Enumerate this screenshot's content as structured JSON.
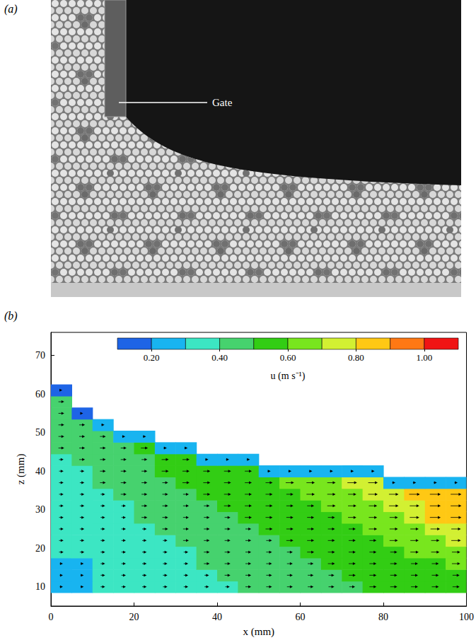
{
  "panel_a": {
    "label": "(a)",
    "annotations": [
      "Gate"
    ]
  },
  "chart_data": {
    "type": "contour",
    "panel_label": "(b)",
    "x_label": "x (mm)",
    "y_label": "z (mm)",
    "xlim": [
      0,
      100
    ],
    "xticks": [
      0,
      20,
      40,
      60,
      80,
      100
    ],
    "ylim": [
      5,
      76
    ],
    "yticks": [
      10,
      20,
      30,
      40,
      50,
      60,
      70
    ],
    "grid": false,
    "marker": "arrow",
    "x": [
      2.5,
      7.5,
      12.5,
      17.5,
      22.5,
      27.5,
      32.5,
      37.5,
      42.5,
      47.5,
      52.5,
      57.5,
      62.5,
      67.5,
      72.5,
      77.5,
      82.5,
      87.5,
      92.5,
      97.5
    ],
    "z": [
      10,
      13,
      16,
      19,
      22,
      25,
      28,
      31,
      34,
      37,
      40,
      43,
      46,
      49,
      52,
      55,
      58,
      61
    ],
    "u": [
      [
        0.25,
        0.25,
        0.35,
        0.35,
        0.35,
        0.35,
        0.35,
        0.35,
        0.35,
        0.45,
        0.45,
        0.45,
        0.45,
        0.45,
        0.45,
        0.55,
        0.55,
        0.55,
        0.55,
        0.55
      ],
      [
        0.25,
        0.25,
        0.35,
        0.35,
        0.35,
        0.35,
        0.35,
        0.35,
        0.45,
        0.45,
        0.45,
        0.45,
        0.45,
        0.45,
        0.55,
        0.55,
        0.55,
        0.55,
        0.55,
        0.55
      ],
      [
        0.25,
        0.25,
        0.35,
        0.35,
        0.35,
        0.35,
        0.35,
        0.45,
        0.45,
        0.45,
        0.45,
        0.45,
        0.45,
        0.55,
        0.55,
        0.55,
        0.55,
        0.55,
        0.55,
        0.65
      ],
      [
        0.35,
        0.35,
        0.35,
        0.35,
        0.35,
        0.35,
        0.35,
        0.45,
        0.45,
        0.45,
        0.45,
        0.45,
        0.55,
        0.55,
        0.55,
        0.55,
        0.55,
        0.65,
        0.65,
        0.65
      ],
      [
        0.35,
        0.35,
        0.35,
        0.35,
        0.35,
        0.35,
        0.45,
        0.45,
        0.45,
        0.45,
        0.45,
        0.55,
        0.55,
        0.55,
        0.55,
        0.55,
        0.65,
        0.65,
        0.65,
        0.75
      ],
      [
        0.35,
        0.35,
        0.35,
        0.35,
        0.35,
        0.45,
        0.45,
        0.45,
        0.45,
        0.45,
        0.55,
        0.55,
        0.55,
        0.55,
        0.55,
        0.65,
        0.65,
        0.65,
        0.75,
        0.75
      ],
      [
        0.35,
        0.35,
        0.35,
        0.35,
        0.45,
        0.45,
        0.45,
        0.45,
        0.45,
        0.55,
        0.55,
        0.55,
        0.55,
        0.55,
        0.65,
        0.65,
        0.65,
        0.75,
        0.85,
        0.85
      ],
      [
        0.35,
        0.35,
        0.35,
        0.35,
        0.45,
        0.45,
        0.45,
        0.45,
        0.55,
        0.55,
        0.55,
        0.55,
        0.55,
        0.65,
        0.65,
        0.65,
        0.75,
        0.75,
        0.85,
        0.85
      ],
      [
        0.35,
        0.35,
        0.35,
        0.45,
        0.45,
        0.45,
        0.45,
        0.55,
        0.55,
        0.55,
        0.55,
        0.55,
        0.65,
        0.65,
        0.65,
        0.75,
        0.75,
        0.85,
        0.85,
        0.85
      ],
      [
        0.35,
        0.35,
        0.45,
        0.45,
        0.45,
        0.45,
        0.55,
        0.55,
        0.55,
        0.55,
        0.55,
        0.65,
        0.65,
        0.65,
        0.75,
        0.75,
        0.25,
        0.25,
        0.25,
        0.25
      ],
      [
        0.35,
        0.35,
        0.45,
        0.45,
        0.45,
        0.55,
        0.55,
        0.55,
        0.55,
        0.55,
        0.25,
        0.25,
        0.25,
        0.25,
        0.25,
        0.25,
        null,
        null,
        null,
        null
      ],
      [
        0.35,
        0.45,
        0.45,
        0.45,
        0.45,
        0.55,
        0.55,
        0.25,
        0.25,
        0.25,
        null,
        null,
        null,
        null,
        null,
        null,
        null,
        null,
        null,
        null
      ],
      [
        0.45,
        0.45,
        0.45,
        0.45,
        0.55,
        0.25,
        0.25,
        null,
        null,
        null,
        null,
        null,
        null,
        null,
        null,
        null,
        null,
        null,
        null,
        null
      ],
      [
        0.45,
        0.45,
        0.45,
        0.25,
        0.25,
        null,
        null,
        null,
        null,
        null,
        null,
        null,
        null,
        null,
        null,
        null,
        null,
        null,
        null,
        null
      ],
      [
        0.45,
        0.45,
        0.25,
        null,
        null,
        null,
        null,
        null,
        null,
        null,
        null,
        null,
        null,
        null,
        null,
        null,
        null,
        null,
        null,
        null
      ],
      [
        0.45,
        0.15,
        null,
        null,
        null,
        null,
        null,
        null,
        null,
        null,
        null,
        null,
        null,
        null,
        null,
        null,
        null,
        null,
        null,
        null
      ],
      [
        0.45,
        null,
        null,
        null,
        null,
        null,
        null,
        null,
        null,
        null,
        null,
        null,
        null,
        null,
        null,
        null,
        null,
        null,
        null,
        null
      ],
      [
        0.15,
        null,
        null,
        null,
        null,
        null,
        null,
        null,
        null,
        null,
        null,
        null,
        null,
        null,
        null,
        null,
        null,
        null,
        null,
        null
      ]
    ],
    "colorbar": {
      "label": "u (m s⁻¹)",
      "levels": [
        0.1,
        0.2,
        0.3,
        0.4,
        0.5,
        0.6,
        0.7,
        0.8,
        0.9,
        1.0,
        1.1
      ],
      "colors": [
        "#1e64e6",
        "#18b4f0",
        "#3ce6c3",
        "#46d26e",
        "#32cd14",
        "#78e61e",
        "#d2f032",
        "#ffc814",
        "#ff7814",
        "#f01414"
      ],
      "ticks": [
        {
          "value": 0.2,
          "label": "0.20"
        },
        {
          "value": 0.4,
          "label": "0.40"
        },
        {
          "value": 0.6,
          "label": "0.60"
        },
        {
          "value": 0.8,
          "label": "0.80"
        },
        {
          "value": 1.0,
          "label": "1.00"
        }
      ]
    }
  }
}
